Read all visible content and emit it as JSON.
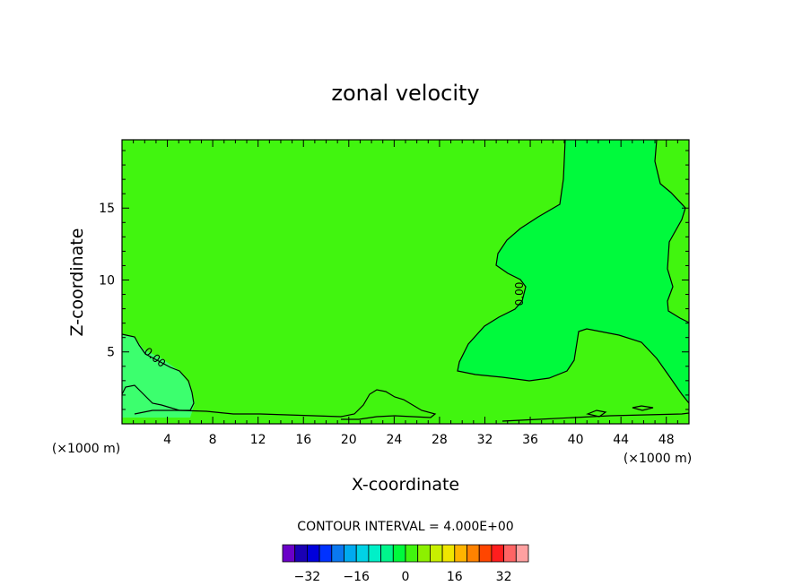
{
  "chart_data": {
    "type": "contour",
    "title": "zonal velocity",
    "xlabel": "X-coordinate",
    "ylabel": "Z-coordinate",
    "x_unit_label_left": "(×1000 m)",
    "x_unit_label_right": "(×1000 m)",
    "xlim": [
      0,
      50
    ],
    "ylim": [
      0,
      19.75
    ],
    "x_ticks": [
      "4",
      "8",
      "12",
      "16",
      "20",
      "24",
      "28",
      "32",
      "36",
      "40",
      "44",
      "48"
    ],
    "y_ticks": [
      "5",
      "10",
      "15"
    ],
    "contour_interval_text": "CONTOUR INTERVAL = 4.000E+00",
    "contour_labels": [
      "0.00",
      "0.00"
    ],
    "field_colors": {
      "background": "#41f50f",
      "positive_core": "#00fa3c",
      "weak_positive": "#3cff6e"
    },
    "colorbar": {
      "tick_labels": [
        "-32",
        "-16",
        "0",
        "16",
        "32"
      ],
      "colors": [
        "#6a00c8",
        "#1a00b4",
        "#0000dc",
        "#0032ff",
        "#0a78f0",
        "#00aaf0",
        "#00d2e6",
        "#00f0c8",
        "#00f58c",
        "#00fa3c",
        "#41f50f",
        "#8cf000",
        "#c8f000",
        "#f0e600",
        "#ffb400",
        "#ff8200",
        "#ff4600",
        "#ff1e1e",
        "#ff6464",
        "#ffa0a0"
      ]
    }
  }
}
